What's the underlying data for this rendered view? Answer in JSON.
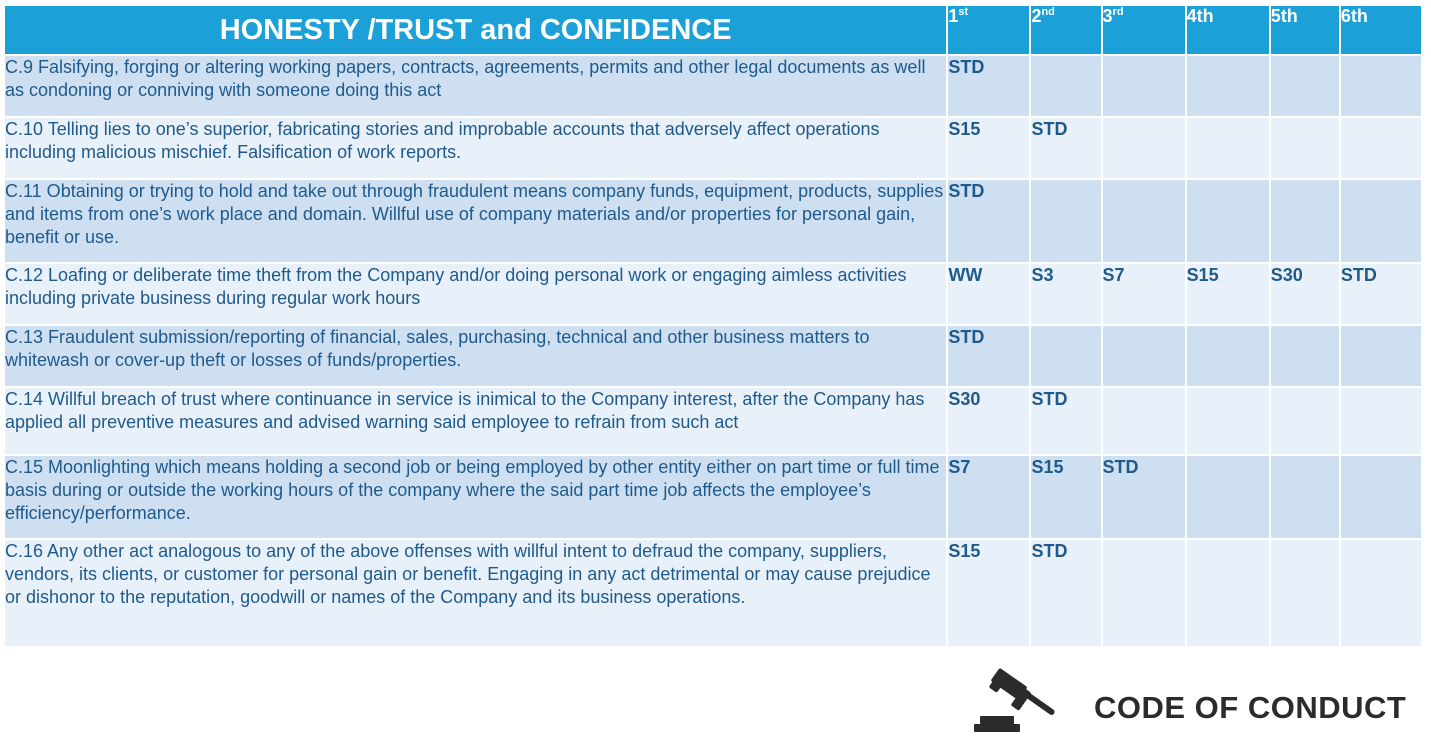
{
  "table": {
    "title": "HONESTY /TRUST and CONFIDENCE",
    "columns": [
      {
        "base": "1",
        "sup": "st"
      },
      {
        "base": "2",
        "sup": "nd"
      },
      {
        "base": "3",
        "sup": "rd"
      },
      {
        "base": "4th",
        "sup": ""
      },
      {
        "base": "5th",
        "sup": ""
      },
      {
        "base": "6th",
        "sup": ""
      }
    ],
    "rows": [
      {
        "text": "C.9 Falsifying, forging or altering working papers, contracts, agreements, permits and  other legal documents as well as condoning or conniving with someone doing this act",
        "penalties": [
          "STD",
          "",
          "",
          "",
          "",
          ""
        ]
      },
      {
        "text": "C.10  Telling lies to one’s  superior,  fabricating stories and improbable accounts that adversely affect operations including malicious mischief. Falsification of work reports.",
        "penalties": [
          "S15",
          "STD",
          "",
          "",
          "",
          ""
        ]
      },
      {
        "text": "C.11  Obtaining or trying to hold and take out through fraudulent means company funds, equipment, products, supplies and items from one’s work place and domain. Willful use of company materials and/or properties for personal gain, benefit or use.",
        "penalties": [
          "STD",
          "",
          "",
          "",
          "",
          ""
        ]
      },
      {
        "text": "C.12  Loafing  or deliberate time theft  from the Company and/or doing personal work or engaging aimless activities including  private business during regular work hours",
        "penalties": [
          "WW",
          "S3",
          "S7",
          "S15",
          "S30",
          "STD"
        ]
      },
      {
        "text": "C.13 Fraudulent submission/reporting of financial, sales, purchasing, technical and other business matters to whitewash or cover-up theft or losses of funds/properties.",
        "penalties": [
          "STD",
          "",
          "",
          "",
          "",
          ""
        ]
      },
      {
        "text": "C.14  Willful breach of trust where continuance in service is inimical to the Company interest, after the Company has applied all preventive measures and advised warning said employee to refrain from such act",
        "penalties": [
          "S30",
          "STD",
          "",
          "",
          "",
          ""
        ]
      },
      {
        "text": "C.15  Moonlighting which means holding a second job or being employed by other entity either on part time or full time basis during or outside the working hours of the company where the said part time job affects the employee’s efficiency/performance.",
        "penalties": [
          "S7",
          "S15",
          "STD",
          "",
          "",
          ""
        ]
      },
      {
        "text": "C.16  Any other act analogous to any of the above offenses with willful intent to defraud the company, suppliers, vendors, its clients, or customer for personal gain or benefit. Engaging in any act detrimental or may cause prejudice or dishonor to the reputation, goodwill or names of the Company and its business operations.",
        "penalties": [
          "S15",
          "STD",
          "",
          "",
          "",
          ""
        ]
      }
    ]
  },
  "colors": {
    "header_bg": "#1ba1d8",
    "row_dark": "#cddff0",
    "row_light": "#e8f0f9",
    "text_blue": "#1f5a8c",
    "std_red": "#e01e2b",
    "ww_green": "#2aa646",
    "s15_teal": "#1a86b8"
  },
  "logo": {
    "icon": "gavel-icon",
    "text": "CODE OF CONDUCT"
  }
}
